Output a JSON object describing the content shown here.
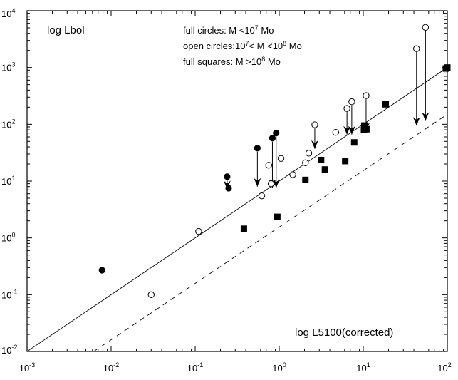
{
  "chart_data": {
    "type": "scatter",
    "xscale": "log",
    "yscale": "log",
    "xlim": [
      0.001,
      100
    ],
    "ylim": [
      0.01,
      10000
    ],
    "grid": false,
    "x_ticks": [
      {
        "base": "10",
        "exp": "-3",
        "value": 0.001
      },
      {
        "base": "10",
        "exp": "-2",
        "value": 0.01
      },
      {
        "base": "10",
        "exp": "-1",
        "value": 0.1
      },
      {
        "base": "10",
        "exp": "0",
        "value": 1
      },
      {
        "base": "10",
        "exp": "1",
        "value": 10
      },
      {
        "base": "10",
        "exp": "2",
        "value": 100
      }
    ],
    "y_ticks": [
      {
        "base": "10",
        "exp": "-2",
        "value": 0.01
      },
      {
        "base": "10",
        "exp": "-1",
        "value": 0.1
      },
      {
        "base": "10",
        "exp": "0",
        "value": 1
      },
      {
        "base": "10",
        "exp": "1",
        "value": 10
      },
      {
        "base": "10",
        "exp": "2",
        "value": 100
      },
      {
        "base": "10",
        "exp": "3",
        "value": 1000
      },
      {
        "base": "10",
        "exp": "4",
        "value": 10000
      }
    ],
    "ylabel": "log Lbol",
    "xlabel": "log L5100(corrected)",
    "legend": {
      "full_circles": {
        "text": "full circles: M <10",
        "sup": "7",
        "tail": " Mo"
      },
      "open_circles": {
        "text": "open circles:10",
        "sup": "7",
        "mid": "< M <10",
        "sup2": "8",
        "tail": " Mo"
      },
      "full_squares": {
        "text": "full squares: M >10",
        "sup": "8",
        "tail": " Mo"
      }
    },
    "series": [
      {
        "marker": "full-circle",
        "points": [
          {
            "x": 0.0078,
            "y": 0.27
          },
          {
            "x": 0.24,
            "y": 12
          },
          {
            "x": 0.25,
            "y": 7.5
          },
          {
            "x": 0.55,
            "y": 38
          },
          {
            "x": 0.83,
            "y": 57
          },
          {
            "x": 0.92,
            "y": 70
          }
        ]
      },
      {
        "marker": "open-circle",
        "points": [
          {
            "x": 0.03,
            "y": 0.1
          },
          {
            "x": 0.11,
            "y": 1.3
          },
          {
            "x": 0.62,
            "y": 5.5
          },
          {
            "x": 0.75,
            "y": 19
          },
          {
            "x": 0.8,
            "y": 9
          },
          {
            "x": 1.05,
            "y": 25
          },
          {
            "x": 1.45,
            "y": 13
          },
          {
            "x": 2.05,
            "y": 21
          },
          {
            "x": 2.25,
            "y": 31
          },
          {
            "x": 2.65,
            "y": 98
          },
          {
            "x": 4.7,
            "y": 72
          },
          {
            "x": 6.4,
            "y": 190
          },
          {
            "x": 7.3,
            "y": 250
          },
          {
            "x": 10.8,
            "y": 320
          },
          {
            "x": 43,
            "y": 2150
          },
          {
            "x": 55,
            "y": 5100
          }
        ]
      },
      {
        "marker": "full-square",
        "points": [
          {
            "x": 0.38,
            "y": 1.45
          },
          {
            "x": 0.95,
            "y": 2.35
          },
          {
            "x": 2.05,
            "y": 10.5
          },
          {
            "x": 3.15,
            "y": 23.5
          },
          {
            "x": 3.5,
            "y": 16
          },
          {
            "x": 6.1,
            "y": 22.5
          },
          {
            "x": 7.8,
            "y": 48
          },
          {
            "x": 10.2,
            "y": 80
          },
          {
            "x": 10.9,
            "y": 82
          },
          {
            "x": 10.3,
            "y": 95
          },
          {
            "x": 18.5,
            "y": 225
          },
          {
            "x": 96,
            "y": 960
          },
          {
            "x": 100,
            "y": 1000
          }
        ]
      }
    ],
    "arrows": [
      {
        "x": 0.24,
        "y_from": 12,
        "y_to": 7.2
      },
      {
        "x": 0.55,
        "y_from": 38,
        "y_to": 8
      },
      {
        "x": 0.83,
        "y_from": 57,
        "y_to": 7.6
      },
      {
        "x": 0.92,
        "y_from": 70,
        "y_to": 7.6
      },
      {
        "x": 2.65,
        "y_from": 98,
        "y_to": 37
      },
      {
        "x": 6.4,
        "y_from": 190,
        "y_to": 66
      },
      {
        "x": 7.3,
        "y_from": 250,
        "y_to": 66
      },
      {
        "x": 10.8,
        "y_from": 320,
        "y_to": 75
      },
      {
        "x": 43,
        "y_from": 2150,
        "y_to": 95
      },
      {
        "x": 55,
        "y_from": 5100,
        "y_to": 115
      }
    ],
    "lines": [
      {
        "style": "solid",
        "from": [
          0.001,
          0.01
        ],
        "to": [
          100,
          1000
        ]
      },
      {
        "style": "dashed",
        "from": [
          0.0062,
          0.01
        ],
        "to": [
          100,
          150
        ]
      }
    ]
  }
}
